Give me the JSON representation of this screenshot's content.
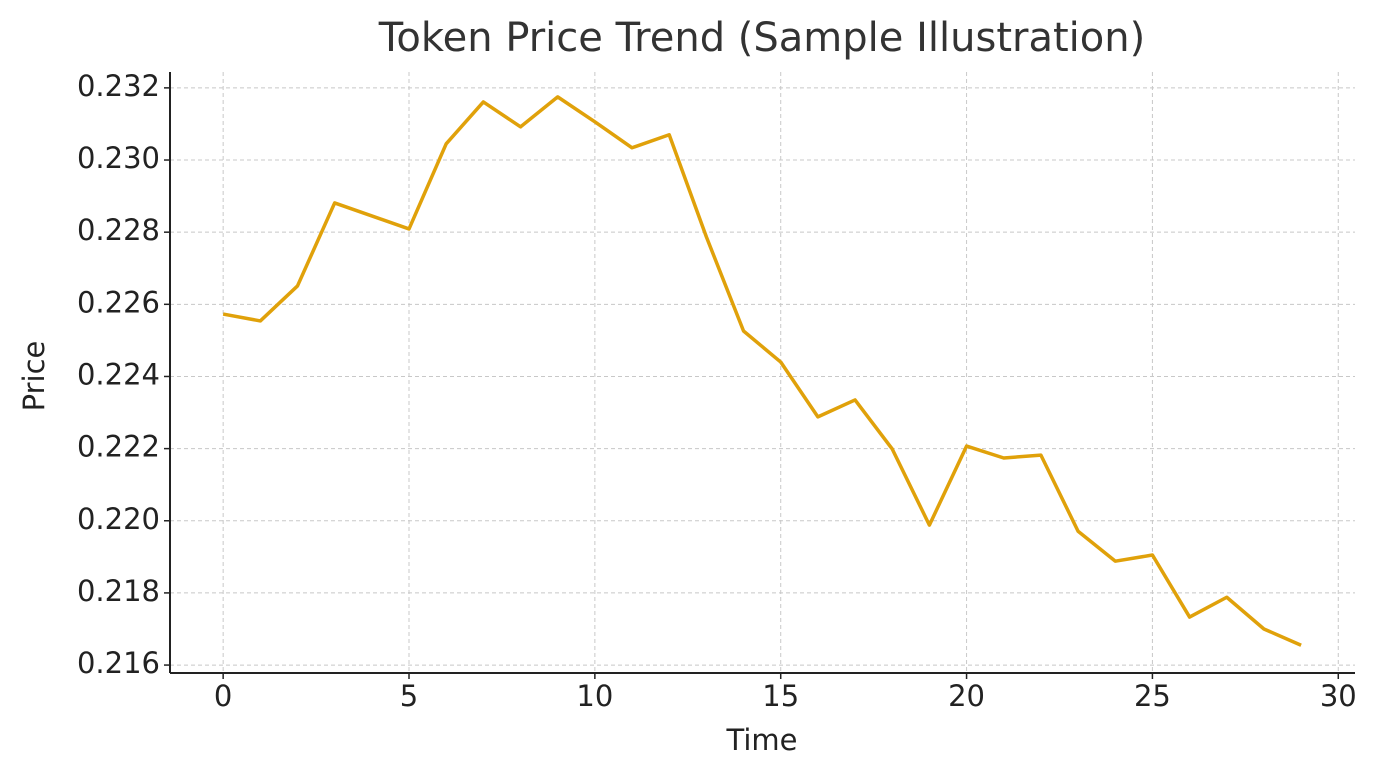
{
  "chart_data": {
    "type": "line",
    "title": "Token Price Trend (Sample Illustration)",
    "x_label": "Time",
    "y_label": "Price",
    "x": [
      0,
      1,
      2,
      3,
      4,
      5,
      6,
      7,
      8,
      9,
      10,
      11,
      12,
      13,
      14,
      15,
      16,
      17,
      18,
      19,
      20,
      21,
      22,
      23,
      24,
      25,
      26,
      27,
      28,
      29
    ],
    "series": [
      {
        "name": "Price",
        "color": "#e0a10a",
        "values": [
          0.22573,
          0.22554,
          0.22651,
          0.22881,
          0.22845,
          0.22809,
          0.23045,
          0.23161,
          0.23092,
          0.23175,
          0.23106,
          0.23034,
          0.2307,
          0.22787,
          0.22526,
          0.2244,
          0.22288,
          0.22335,
          0.22199,
          0.21988,
          0.22207,
          0.22174,
          0.22182,
          0.21971,
          0.21888,
          0.21905,
          0.21733,
          0.21788,
          0.217,
          0.21655
        ]
      }
    ],
    "xlim": [
      -1.43,
      30.45
    ],
    "ylim": [
      0.21578,
      0.23244
    ],
    "xticks": [
      0,
      5,
      10,
      15,
      20,
      25,
      30
    ],
    "yticks": [
      {
        "value": 0.216,
        "label": "0.216"
      },
      {
        "value": 0.218,
        "label": "0.218"
      },
      {
        "value": 0.22,
        "label": "0.220"
      },
      {
        "value": 0.222,
        "label": "0.222"
      },
      {
        "value": 0.224,
        "label": "0.224"
      },
      {
        "value": 0.226,
        "label": "0.226"
      },
      {
        "value": 0.228,
        "label": "0.228"
      },
      {
        "value": 0.23,
        "label": "0.230"
      },
      {
        "value": 0.232,
        "label": "0.232"
      }
    ],
    "grid": true
  }
}
